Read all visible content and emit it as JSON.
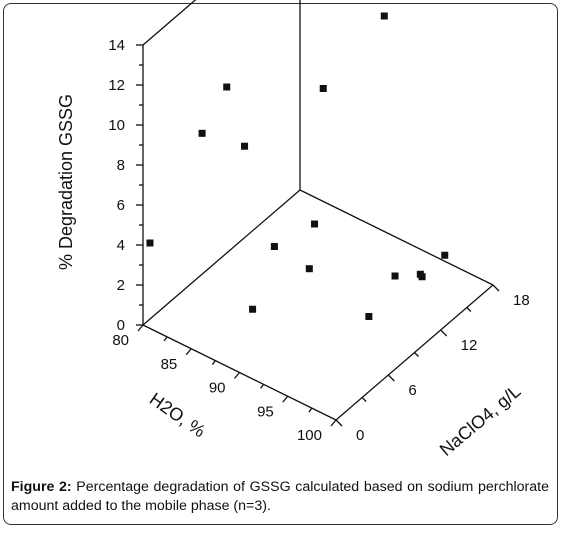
{
  "chart_data": {
    "type": "scatter",
    "projection": "3d",
    "z_axis": {
      "label": "% Degradation GSSG",
      "ticks": [
        0,
        2,
        4,
        6,
        8,
        10,
        12,
        14
      ],
      "range": [
        0,
        14
      ]
    },
    "x_axis": {
      "label": "H2O, %",
      "ticks": [
        80,
        85,
        90,
        95,
        100
      ],
      "range": [
        80,
        100
      ]
    },
    "y_axis": {
      "label": "NaClO4, g/L",
      "ticks": [
        0,
        6,
        12,
        18
      ],
      "range": [
        0,
        18
      ]
    },
    "grid": false,
    "marker": {
      "shape": "square",
      "color": "#111111"
    },
    "points": [
      {
        "h2o": 80,
        "naclo4": 9.6,
        "degradation": 8.3
      },
      {
        "h2o": 80.7,
        "naclo4": 6,
        "degradation": 7.5
      },
      {
        "h2o": 80,
        "naclo4": 0.8,
        "degradation": 3.8
      },
      {
        "h2o": 85.1,
        "naclo4": 6,
        "degradation": 7.9
      },
      {
        "h2o": 90,
        "naclo4": 9.6,
        "degradation": 10.6
      },
      {
        "h2o": 90,
        "naclo4": 16.6,
        "degradation": 11.6
      },
      {
        "h2o": 90,
        "naclo4": 4,
        "degradation": 4.8
      },
      {
        "h2o": 90,
        "naclo4": 8.6,
        "degradation": 4.2
      },
      {
        "h2o": 90,
        "naclo4": 1.5,
        "degradation": 2.6
      },
      {
        "h2o": 89.1,
        "naclo4": 9,
        "degradation": 1.6
      },
      {
        "h2o": 95,
        "naclo4": 12.3,
        "degradation": 1.4
      },
      {
        "h2o": 95,
        "naclo4": 9.3,
        "degradation": 0.5
      },
      {
        "h2o": 95,
        "naclo4": 15.4,
        "degradation": 0.2
      },
      {
        "h2o": 95,
        "naclo4": 15.2,
        "degradation": 0.4
      },
      {
        "h2o": 95,
        "naclo4": 18,
        "degradation": 0.3
      }
    ]
  },
  "caption": {
    "label": "Figure 2:",
    "text": " Percentage degradation of GSSG calculated based on sodium perchlorate amount added to the mobile phase (n=3)."
  }
}
